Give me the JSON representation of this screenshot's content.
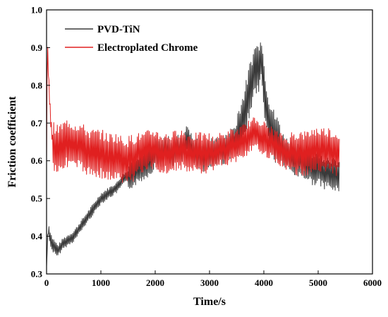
{
  "chart_data": {
    "type": "line",
    "title": "",
    "xlabel": "Time/s",
    "ylabel": "Friction coefficient",
    "xlim": [
      0,
      6000
    ],
    "ylim": [
      0.3,
      1.0
    ],
    "xticks": [
      0,
      1000,
      2000,
      3000,
      4000,
      5000,
      6000
    ],
    "yticks": [
      0.3,
      0.4,
      0.5,
      0.6,
      0.7,
      0.8,
      0.9,
      1.0
    ],
    "xtick_labels": [
      "0",
      "1000",
      "2000",
      "3000",
      "4000",
      "5000",
      "6000"
    ],
    "ytick_labels": [
      "0.3",
      "0.4",
      "0.5",
      "0.6",
      "0.7",
      "0.8",
      "0.9",
      "1.0"
    ],
    "legend_position": "top-left",
    "grid": false,
    "series": [
      {
        "name": "PVD-TiN",
        "color": "#3a3a3a",
        "x": [
          0,
          30,
          60,
          100,
          150,
          200,
          250,
          300,
          400,
          500,
          600,
          700,
          800,
          900,
          1000,
          1100,
          1200,
          1300,
          1400,
          1500,
          1600,
          1700,
          1800,
          1900,
          2000,
          2100,
          2200,
          2300,
          2400,
          2500,
          2600,
          2700,
          2800,
          2900,
          3000,
          3100,
          3200,
          3300,
          3400,
          3500,
          3600,
          3700,
          3750,
          3800,
          3850,
          3900,
          3950,
          4000,
          4050,
          4100,
          4150,
          4200,
          4300,
          4400,
          4500,
          4600,
          4700,
          4800,
          4900,
          5000,
          5100,
          5200,
          5300,
          5400
        ],
        "values": [
          0.32,
          0.42,
          0.4,
          0.38,
          0.37,
          0.36,
          0.37,
          0.38,
          0.39,
          0.4,
          0.42,
          0.44,
          0.46,
          0.48,
          0.5,
          0.51,
          0.52,
          0.53,
          0.55,
          0.56,
          0.57,
          0.58,
          0.59,
          0.6,
          0.62,
          0.62,
          0.63,
          0.62,
          0.63,
          0.63,
          0.66,
          0.62,
          0.62,
          0.61,
          0.62,
          0.62,
          0.63,
          0.63,
          0.65,
          0.66,
          0.7,
          0.76,
          0.8,
          0.82,
          0.85,
          0.84,
          0.88,
          0.8,
          0.74,
          0.7,
          0.68,
          0.66,
          0.64,
          0.62,
          0.61,
          0.6,
          0.6,
          0.59,
          0.58,
          0.58,
          0.57,
          0.57,
          0.56,
          0.56
        ]
      },
      {
        "name": "Electroplated Chrome",
        "color": "#e02020",
        "x": [
          0,
          15,
          30,
          50,
          80,
          120,
          200,
          300,
          400,
          500,
          600,
          700,
          800,
          900,
          1000,
          1100,
          1200,
          1300,
          1400,
          1500,
          1600,
          1700,
          1800,
          1900,
          2000,
          2100,
          2200,
          2300,
          2400,
          2500,
          2600,
          2700,
          2800,
          2900,
          3000,
          3100,
          3200,
          3300,
          3400,
          3500,
          3600,
          3700,
          3800,
          3900,
          4000,
          4100,
          4200,
          4300,
          4400,
          4500,
          4600,
          4700,
          4800,
          4900,
          5000,
          5100,
          5200,
          5300,
          5400
        ],
        "values": [
          0.6,
          0.91,
          0.85,
          0.78,
          0.7,
          0.64,
          0.63,
          0.64,
          0.65,
          0.64,
          0.64,
          0.63,
          0.62,
          0.62,
          0.62,
          0.61,
          0.61,
          0.61,
          0.6,
          0.6,
          0.61,
          0.62,
          0.62,
          0.63,
          0.63,
          0.62,
          0.62,
          0.62,
          0.63,
          0.63,
          0.62,
          0.62,
          0.62,
          0.62,
          0.62,
          0.62,
          0.63,
          0.63,
          0.64,
          0.64,
          0.65,
          0.66,
          0.67,
          0.67,
          0.66,
          0.65,
          0.64,
          0.63,
          0.62,
          0.62,
          0.62,
          0.62,
          0.62,
          0.63,
          0.63,
          0.63,
          0.63,
          0.62,
          0.62
        ]
      }
    ]
  }
}
